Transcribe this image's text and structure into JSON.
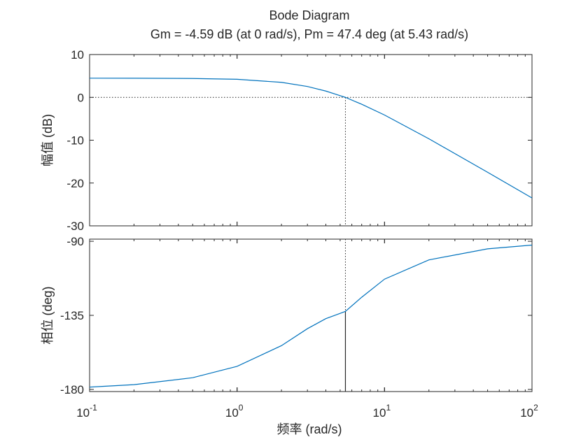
{
  "chart_data": [
    {
      "type": "line",
      "title": "Bode Diagram",
      "subtitle": "Gm = -4.59 dB (at 0 rad/s),  Pm = 47.4 deg (at 5.43 rad/s)",
      "ylabel": "幅值 (dB)",
      "log_x": true,
      "color": "#0072bd",
      "x": [
        0.1,
        0.2,
        0.5,
        1,
        2,
        3,
        4,
        5,
        5.43,
        7,
        10,
        20,
        50,
        100
      ],
      "values": [
        4.48,
        4.47,
        4.41,
        4.22,
        3.51,
        2.54,
        1.47,
        0.39,
        0,
        -1.61,
        -4.12,
        -9.67,
        -17.49,
        -23.49
      ],
      "xlim": [
        0.1,
        100
      ],
      "ylim": [
        -30,
        10
      ],
      "yticks": [
        -30,
        -20,
        -10,
        0,
        10
      ],
      "reference_y": 0,
      "marker_x": 5.43
    },
    {
      "type": "line",
      "ylabel": "相位 (deg)",
      "xlabel": "频率  (rad/s)",
      "log_x": true,
      "color": "#0072bd",
      "x": [
        0.1,
        0.2,
        0.5,
        1,
        2,
        3,
        4,
        5,
        5.43,
        7,
        10,
        20,
        50,
        100
      ],
      "values": [
        -178.6,
        -177.1,
        -172.9,
        -166.0,
        -153.4,
        -143.1,
        -137,
        -133.8,
        -132.6,
        -124,
        -113,
        -101.3,
        -94.6,
        -92.3
      ],
      "xlim": [
        0.1,
        100
      ],
      "ylim": [
        -181.3,
        -88.7
      ],
      "yticks": [
        -180,
        -135,
        -90
      ],
      "xticks": [
        {
          "value": 0.1,
          "label": "10",
          "exponent": "-1"
        },
        {
          "value": 1,
          "label": "10",
          "exponent": "0"
        },
        {
          "value": 10,
          "label": "10",
          "exponent": "1"
        },
        {
          "value": 100,
          "label": "10",
          "exponent": "2"
        }
      ],
      "marker_x": 5.43,
      "marker_y": -132.6
    }
  ]
}
